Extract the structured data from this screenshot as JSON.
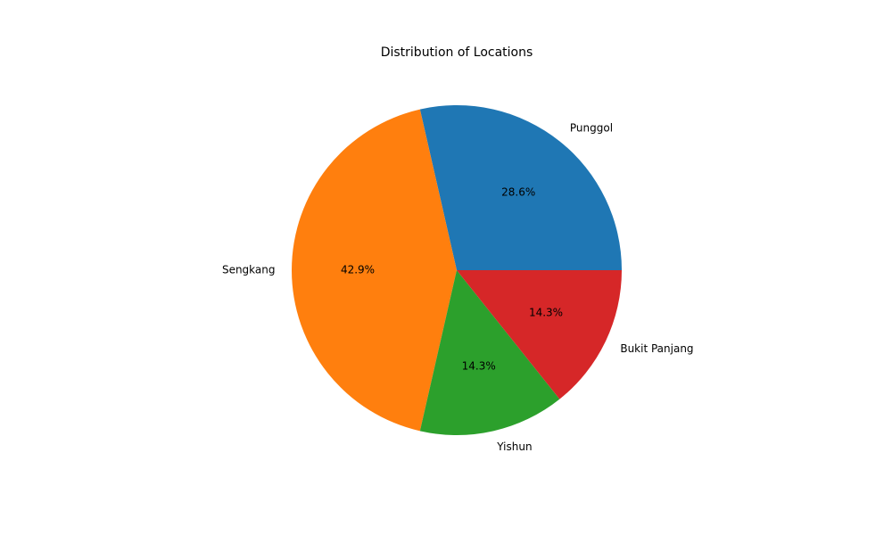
{
  "chart_data": {
    "type": "pie",
    "title": "Distribution of Locations",
    "categories": [
      "Punggol",
      "Sengkang",
      "Yishun",
      "Bukit Panjang"
    ],
    "values": [
      2,
      3,
      1,
      1
    ],
    "percent_labels": [
      "28.6%",
      "42.9%",
      "14.3%",
      "14.3%"
    ],
    "colors": [
      "#1f77b4",
      "#ff7f0e",
      "#2ca02c",
      "#d62728"
    ],
    "start_angle_deg": 0,
    "direction": "counterclockwise",
    "legend": "none"
  }
}
